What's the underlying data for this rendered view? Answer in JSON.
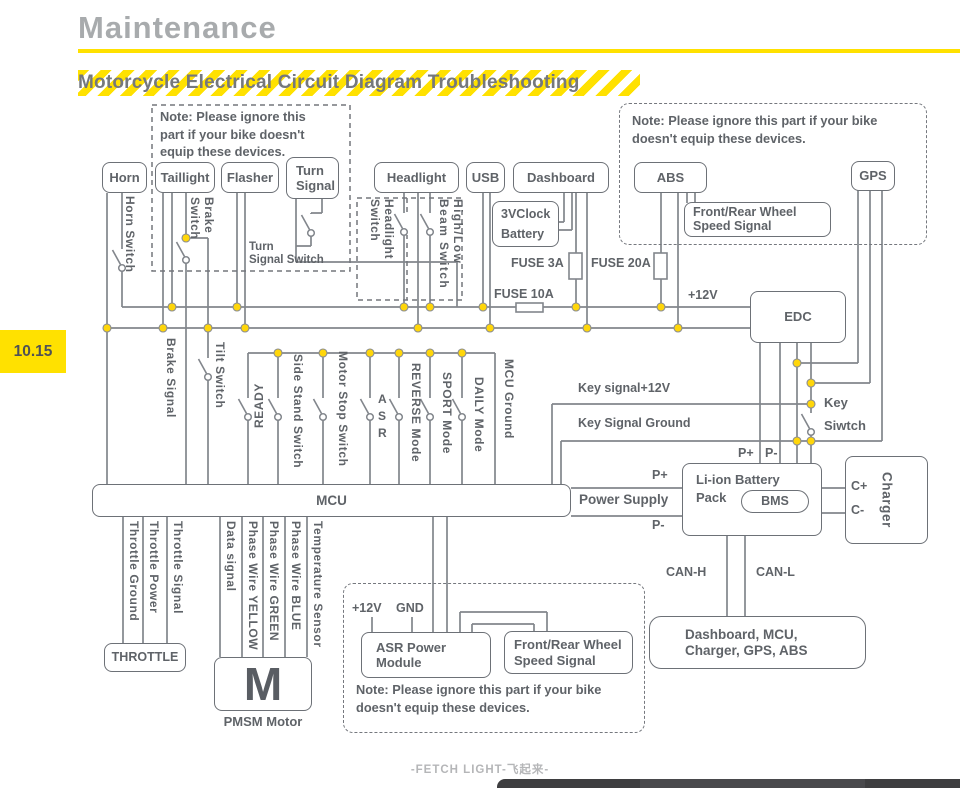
{
  "page": {
    "title": "Maintenance",
    "heading": "Motorcycle Electrical Circuit Diagram Troubleshooting",
    "section_tab": "10.15",
    "footer": "-FETCH LIGHT-飞起来-"
  },
  "notes": {
    "top_left": "Note: Please ignore this\npart if your bike doesn't\nequip these devices.",
    "top_right": "Note: Please ignore this part if your bike\ndoesn't equip these devices.",
    "bottom": "Note: Please ignore this part if your bike\ndoesn't equip these devices."
  },
  "components": {
    "horn": "Horn",
    "taillight": "Taillight",
    "flasher": "Flasher",
    "turn_signal": "Turn\nSignal",
    "headlight": "Headlight",
    "usb": "USB",
    "dashboard": "Dashboard",
    "abs": "ABS",
    "gps": "GPS",
    "clock_battery": "3VClock\nBattery",
    "wheel_speed_top": "Front/Rear Wheel\nSpeed Signal",
    "edc": "EDC",
    "mcu": "MCU",
    "battery": "Li-ion Battery\nPack",
    "bms": "BMS",
    "charger": "Charger",
    "throttle": "THROTTLE",
    "motor_m": "M",
    "motor_caption": "PMSM Motor",
    "asr_module": "ASR Power\nModule",
    "wheel_speed_bottom": "Front/Rear Wheel\nSpeed Signal",
    "can_nodes": "Dashboard,  MCU,\nCharger, GPS, ABS"
  },
  "switches": {
    "horn": "Horn Switch",
    "brake": "Brake\nSwitch",
    "turn": "Turn\nSignal Switch",
    "headlight": "Headlight\nSwitch",
    "beam": "High/Low\nBeam Switch",
    "tilt": "Tilt Switch",
    "ready": "READY",
    "side_stand": "Side Stand Switch",
    "motor_stop": "Motor Stop Switch",
    "asr": "A\nS\nR",
    "reverse": "REVERSE Mode",
    "sport": "SPORT Mode",
    "daily": "DAILY Mode",
    "mcu_ground": "MCU Ground",
    "key": "Key\nSiwtch"
  },
  "signals": {
    "brake_signal": "Brake Signal",
    "fuse3a": "FUSE 3A",
    "fuse10a": "FUSE 10A",
    "fuse20a": "FUSE 20A",
    "plus12v": "+12V",
    "key12v": "Key signal+12V",
    "key_ground": "Key Signal Ground",
    "p_plus": "P+",
    "p_minus": "P-",
    "power_supply": "Power Supply",
    "c_plus": "C+",
    "c_minus": "C-",
    "can_h": "CAN-H",
    "can_l": "CAN-L",
    "asr_12v": "+12V",
    "asr_gnd": "GND",
    "throttle_ground": "Throttle Ground",
    "throttle_power": "Throttle Power",
    "throttle_signal": "Throttle Signal",
    "data_signal": "Data signal",
    "phase_yellow": "Phase Wire YELLOW",
    "phase_green": "Phase Wire GREEN",
    "phase_blue": "Phase Wire BLUE",
    "temp_sensor": "Temperature Sensor"
  },
  "colors": {
    "accent_yellow": "#ffe100",
    "wire_gray": "#82868c",
    "text_gray": "#5f6368",
    "dot_yellow": "#ffd60a"
  }
}
